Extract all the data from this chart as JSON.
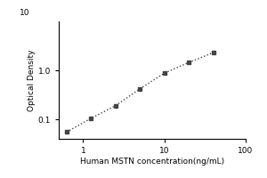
{
  "x_values": [
    0.625,
    1.25,
    2.5,
    5,
    10,
    20,
    40
  ],
  "y_values": [
    0.055,
    0.105,
    0.19,
    0.42,
    0.88,
    1.45,
    2.3
  ],
  "xlabel": "Human MSTN concentration(ng/mL)",
  "ylabel": "Optical Density",
  "xlim": [
    0.5,
    100
  ],
  "ylim": [
    0.04,
    10
  ],
  "line_color": "#444444",
  "marker_color": "#444444",
  "background_color": "#ffffff",
  "x_ticks": [
    1,
    10,
    100
  ],
  "y_ticks": [
    0.1,
    1
  ],
  "y_top_label": "10",
  "linestyle": "dotted",
  "marker": "s",
  "markersize": 3.5,
  "linewidth": 1.0,
  "xlabel_fontsize": 6.5,
  "ylabel_fontsize": 6.5,
  "tick_fontsize": 6.5
}
